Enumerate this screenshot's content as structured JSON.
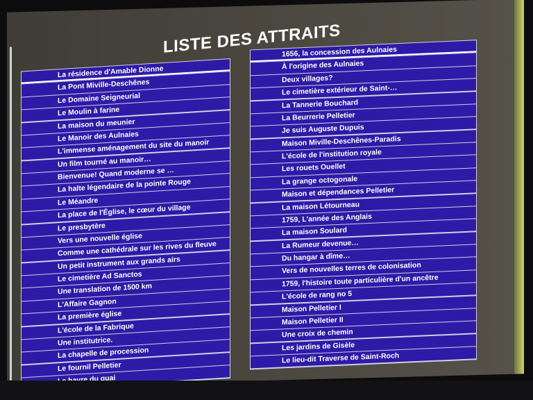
{
  "title": "LISTE DES ATTRAITS",
  "left_list": [
    "La résidence d'Amable Dionne",
    "La Pont Miville-Deschênes",
    "Le Domaine Seigneurial",
    "Le Moulin à farine",
    "La maison du meunier",
    "Le Manoir des Aulnaies",
    "L'immense aménagement du site du manoir",
    "Un film tourné au manoir…",
    "Bienvenue! Quand moderne se …",
    "La halte légendaire de la pointe Rouge",
    "Le Méandre",
    "La place de l'Église, le cœur du village",
    "Le presbytère",
    "Vers une nouvelle église",
    "Comme une cathédrale sur les rives du fleuve",
    "Un petit instrument aux grands airs",
    "Le cimetière Ad Sanctos",
    "Une translation de 1500 km",
    "L'Affaire Gagnon",
    "La première église",
    "L'école de la Fabrique",
    "Une institutrice.",
    "La chapelle de procession",
    "Le fournil Pelletier",
    "Le havre du quai"
  ],
  "right_list": [
    "1656, la concession des Aulnaies",
    "À l'origine des Aulnaies",
    "Deux villages?",
    "Le cimetière extérieur de Saint-…",
    "La Tannerie Bouchard",
    "La Beurrerie Pelletier",
    "Je suis Auguste Dupuis",
    "Maison Miville-Deschênes-Paradis",
    "L'école de l'institution royale",
    "Les rouets Ouellet",
    "La grange octogonale",
    "Maison et dépendances Pelletier",
    "La maison Létourneau",
    "1759, L'année des Anglais",
    "La maison Soulard",
    "La Rumeur devenue…",
    "Du hangar à dîme…",
    "Vers de nouvelles terres de colonisation",
    "1759, l'histoire toute particulière d'un ancêtre",
    "L'école de rang no 5",
    "Maison Pelletier I",
    "Maison Pelletier II",
    "Une croix de chemin",
    "Les jardins de Gisèle",
    "Le lieu-dit Traverse de Saint-Roch"
  ],
  "colors": {
    "row_bg": "#2e1aa6",
    "text": "#ffffff",
    "screen_bg": "#4a473f"
  }
}
